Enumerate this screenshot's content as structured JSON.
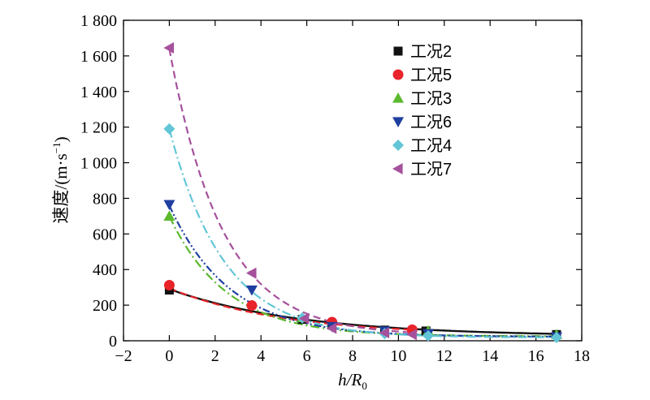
{
  "chart_data": {
    "type": "scatter",
    "xlabel_main": "h/R",
    "xlabel_sub": "0",
    "ylabel_main": "速度/(m·s",
    "ylabel_sup": "−1",
    "ylabel_tail": ")",
    "xlim": [
      -2,
      18
    ],
    "ylim": [
      0,
      1800
    ],
    "xticks": [
      -2,
      0,
      2,
      4,
      6,
      8,
      10,
      12,
      14,
      16,
      18
    ],
    "yticks": [
      0,
      200,
      400,
      600,
      800,
      1000,
      1200,
      1400,
      1600,
      1800
    ],
    "xtick_labels": [
      "−2",
      "0",
      "2",
      "4",
      "6",
      "8",
      "10",
      "12",
      "14",
      "16",
      "18"
    ],
    "ytick_labels": [
      "0",
      "200",
      "400",
      "600",
      "800",
      "1 000",
      "1 200",
      "1 400",
      "1 600",
      "1 800"
    ],
    "legend_position": "top-right",
    "series": [
      {
        "name": "工况2",
        "marker": "square",
        "color": "#111111",
        "line_style": "solid",
        "x": [
          0,
          5.8,
          7.1,
          9.4,
          11.2,
          16.9
        ],
        "y": [
          285,
          120,
          90,
          60,
          55,
          35
        ],
        "fit": {
          "a": 290,
          "b": 0.175,
          "c": 25
        }
      },
      {
        "name": "工况5",
        "marker": "circle",
        "color": "#e8242a",
        "line_style": "dash",
        "x": [
          0,
          3.6,
          7.1,
          10.6
        ],
        "y": [
          312,
          198,
          105,
          62
        ],
        "fit": {
          "a": 295,
          "b": 0.2,
          "c": 30
        }
      },
      {
        "name": "工况3",
        "marker": "triangle-up",
        "color": "#5cb82f",
        "line_style": "dashdot",
        "x": [
          0,
          5.8,
          11.3,
          16.9
        ],
        "y": [
          700,
          130,
          55,
          35
        ],
        "fit": {
          "a": 700,
          "b": 0.4,
          "c": 25
        }
      },
      {
        "name": "工况6",
        "marker": "triangle-down",
        "color": "#1f3fa0",
        "line_style": "dashdotdot",
        "x": [
          0,
          3.6,
          7.1,
          9.4,
          11.3,
          16.9
        ],
        "y": [
          765,
          285,
          80,
          55,
          40,
          22
        ],
        "fit": {
          "a": 760,
          "b": 0.38,
          "c": 22
        }
      },
      {
        "name": "工况4",
        "marker": "diamond",
        "color": "#63c6d6",
        "line_style": "dashdot",
        "x": [
          0,
          5.8,
          9.4,
          11.3,
          16.9
        ],
        "y": [
          1190,
          128,
          40,
          28,
          18
        ],
        "fit": {
          "a": 1190,
          "b": 0.42,
          "c": 18
        }
      },
      {
        "name": "工况7",
        "marker": "triangle-left",
        "color": "#a5519c",
        "line_style": "dash",
        "x": [
          0,
          3.6,
          5.9,
          7.1,
          9.4,
          10.6
        ],
        "y": [
          1645,
          380,
          125,
          70,
          45,
          35
        ],
        "fit": {
          "a": 1640,
          "b": 0.43,
          "c": 30
        }
      }
    ]
  }
}
